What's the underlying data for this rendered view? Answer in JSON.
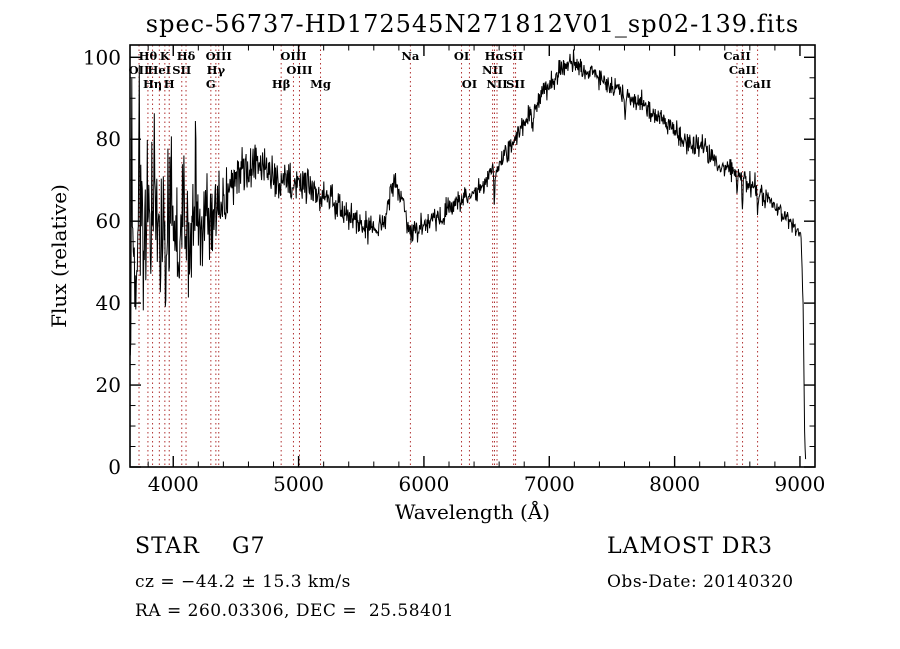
{
  "chart_data": {
    "type": "line",
    "title": "spec-56737-HD172545N271812V01_sp02-139.fits",
    "xlabel": "Wavelength (Å)",
    "ylabel": "Flux (relative)",
    "xlim": [
      3655,
      9120
    ],
    "ylim": [
      0,
      103
    ],
    "xticks": [
      4000,
      5000,
      6000,
      7000,
      8000,
      9000
    ],
    "yticks": [
      0,
      20,
      40,
      60,
      80,
      100
    ],
    "x_minor_step": 200,
    "y_minor_step": 5,
    "grid": false,
    "legend": "none",
    "series_color": "#000000",
    "line_marker_color": "#b03030",
    "noise_seed": 13,
    "envelope": [
      [
        3655,
        28
      ],
      [
        3662,
        52
      ],
      [
        3680,
        57
      ],
      [
        3720,
        60
      ],
      [
        3780,
        58
      ],
      [
        3840,
        60
      ],
      [
        3900,
        58
      ],
      [
        3960,
        60
      ],
      [
        4020,
        58
      ],
      [
        4080,
        59
      ],
      [
        4140,
        58
      ],
      [
        4200,
        60
      ],
      [
        4260,
        61
      ],
      [
        4320,
        62
      ],
      [
        4380,
        64
      ],
      [
        4440,
        67
      ],
      [
        4500,
        70
      ],
      [
        4560,
        72
      ],
      [
        4620,
        73
      ],
      [
        4680,
        74
      ],
      [
        4740,
        73
      ],
      [
        4800,
        71
      ],
      [
        4860,
        69
      ],
      [
        4920,
        70
      ],
      [
        4980,
        69
      ],
      [
        5040,
        70
      ],
      [
        5100,
        68
      ],
      [
        5160,
        66
      ],
      [
        5220,
        67
      ],
      [
        5280,
        65
      ],
      [
        5340,
        63
      ],
      [
        5400,
        61
      ],
      [
        5460,
        60
      ],
      [
        5520,
        59
      ],
      [
        5580,
        58
      ],
      [
        5640,
        59
      ],
      [
        5700,
        62
      ],
      [
        5740,
        68
      ],
      [
        5780,
        70
      ],
      [
        5820,
        66
      ],
      [
        5860,
        60
      ],
      [
        5900,
        57
      ],
      [
        5950,
        58
      ],
      [
        6000,
        59
      ],
      [
        6080,
        60
      ],
      [
        6160,
        62
      ],
      [
        6240,
        64
      ],
      [
        6320,
        65
      ],
      [
        6400,
        67
      ],
      [
        6480,
        69
      ],
      [
        6550,
        72
      ],
      [
        6620,
        75
      ],
      [
        6700,
        79
      ],
      [
        6780,
        83
      ],
      [
        6860,
        87
      ],
      [
        6940,
        91
      ],
      [
        7020,
        94
      ],
      [
        7100,
        97
      ],
      [
        7160,
        99
      ],
      [
        7220,
        98
      ],
      [
        7280,
        97
      ],
      [
        7340,
        97
      ],
      [
        7400,
        95
      ],
      [
        7480,
        93
      ],
      [
        7560,
        92
      ],
      [
        7640,
        90
      ],
      [
        7720,
        89
      ],
      [
        7800,
        87
      ],
      [
        7880,
        85
      ],
      [
        7960,
        83
      ],
      [
        8040,
        81
      ],
      [
        8120,
        79
      ],
      [
        8200,
        78
      ],
      [
        8280,
        76
      ],
      [
        8360,
        74
      ],
      [
        8440,
        73
      ],
      [
        8520,
        71
      ],
      [
        8600,
        69
      ],
      [
        8680,
        67
      ],
      [
        8760,
        65
      ],
      [
        8840,
        62
      ],
      [
        8920,
        60
      ],
      [
        8980,
        58
      ],
      [
        9010,
        56
      ],
      [
        9025,
        40
      ],
      [
        9038,
        6
      ],
      [
        9045,
        2
      ]
    ],
    "noise_profile": [
      [
        3655,
        13
      ],
      [
        3750,
        12
      ],
      [
        4150,
        11
      ],
      [
        4300,
        7
      ],
      [
        4500,
        5
      ],
      [
        4800,
        4
      ],
      [
        5100,
        3.2
      ],
      [
        5500,
        2.8
      ],
      [
        5900,
        2.4
      ],
      [
        6300,
        2.4
      ],
      [
        6563,
        2.2
      ],
      [
        7000,
        2.2
      ],
      [
        7600,
        2.2
      ],
      [
        8200,
        2.4
      ],
      [
        8700,
        2.6
      ],
      [
        9000,
        1.8
      ],
      [
        9046,
        0.6
      ]
    ],
    "features": [
      [
        3668,
        30,
        5
      ],
      [
        3700,
        -18,
        5
      ],
      [
        3728,
        34,
        5
      ],
      [
        3760,
        -16,
        4
      ],
      [
        3795,
        16,
        4
      ],
      [
        3850,
        18,
        5
      ],
      [
        3895,
        -16,
        4
      ],
      [
        3940,
        -14,
        4
      ],
      [
        3985,
        14,
        4
      ],
      [
        4040,
        -16,
        5
      ],
      [
        4085,
        16,
        4
      ],
      [
        4130,
        -14,
        4
      ],
      [
        4180,
        16,
        5
      ],
      [
        4235,
        -12,
        4
      ],
      [
        4270,
        10,
        4
      ],
      [
        6563,
        -8,
        5
      ],
      [
        6872,
        -3.5,
        9
      ],
      [
        7605,
        -4,
        11
      ],
      [
        8498,
        -5,
        5
      ],
      [
        8542,
        -6,
        5
      ],
      [
        8662,
        -6,
        5
      ]
    ],
    "spectral_lines": [
      {
        "label": "OII",
        "wavelength": 3727,
        "row": 2
      },
      {
        "label": "Hθ",
        "wavelength": 3798,
        "row": 1
      },
      {
        "label": "Hη",
        "wavelength": 3835,
        "row": 3
      },
      {
        "label": "HeI",
        "wavelength": 3889,
        "row": 2
      },
      {
        "label": "K",
        "wavelength": 3933,
        "row": 1
      },
      {
        "label": "H",
        "wavelength": 3968,
        "row": 3
      },
      {
        "label": "SII",
        "wavelength": 4068,
        "row": 2
      },
      {
        "label": "Hδ",
        "wavelength": 4102,
        "row": 1
      },
      {
        "label": "G",
        "wavelength": 4300,
        "row": 3
      },
      {
        "label": "Hγ",
        "wavelength": 4340,
        "row": 2
      },
      {
        "label": "OIII",
        "wavelength": 4363,
        "row": 1
      },
      {
        "label": "Hβ",
        "wavelength": 4861,
        "row": 3
      },
      {
        "label": "OIII",
        "wavelength": 4959,
        "row": 1
      },
      {
        "label": "OIII",
        "wavelength": 5007,
        "row": 2
      },
      {
        "label": "Mg",
        "wavelength": 5175,
        "row": 3
      },
      {
        "label": "Na",
        "wavelength": 5892,
        "row": 1
      },
      {
        "label": "OI",
        "wavelength": 6300,
        "row": 1
      },
      {
        "label": "OI",
        "wavelength": 6363,
        "row": 3
      },
      {
        "label": "NII",
        "wavelength": 6548,
        "row": 2
      },
      {
        "label": "Hα",
        "wavelength": 6563,
        "row": 1
      },
      {
        "label": "NII",
        "wavelength": 6583,
        "row": 3
      },
      {
        "label": "SII",
        "wavelength": 6716,
        "row": 1
      },
      {
        "label": "SII",
        "wavelength": 6731,
        "row": 3
      },
      {
        "label": "CaII",
        "wavelength": 8498,
        "row": 1
      },
      {
        "label": "CaII",
        "wavelength": 8542,
        "row": 2
      },
      {
        "label": "CaII",
        "wavelength": 8662,
        "row": 3
      }
    ]
  },
  "annotations": {
    "class_label": "STAR    G7",
    "survey": "LAMOST DR3",
    "cz": "cz = −44.2 ± 15.3 km/s",
    "obs_date": "Obs-Date: 20140320",
    "radec": "RA = 260.03306, DEC =  25.58401"
  }
}
